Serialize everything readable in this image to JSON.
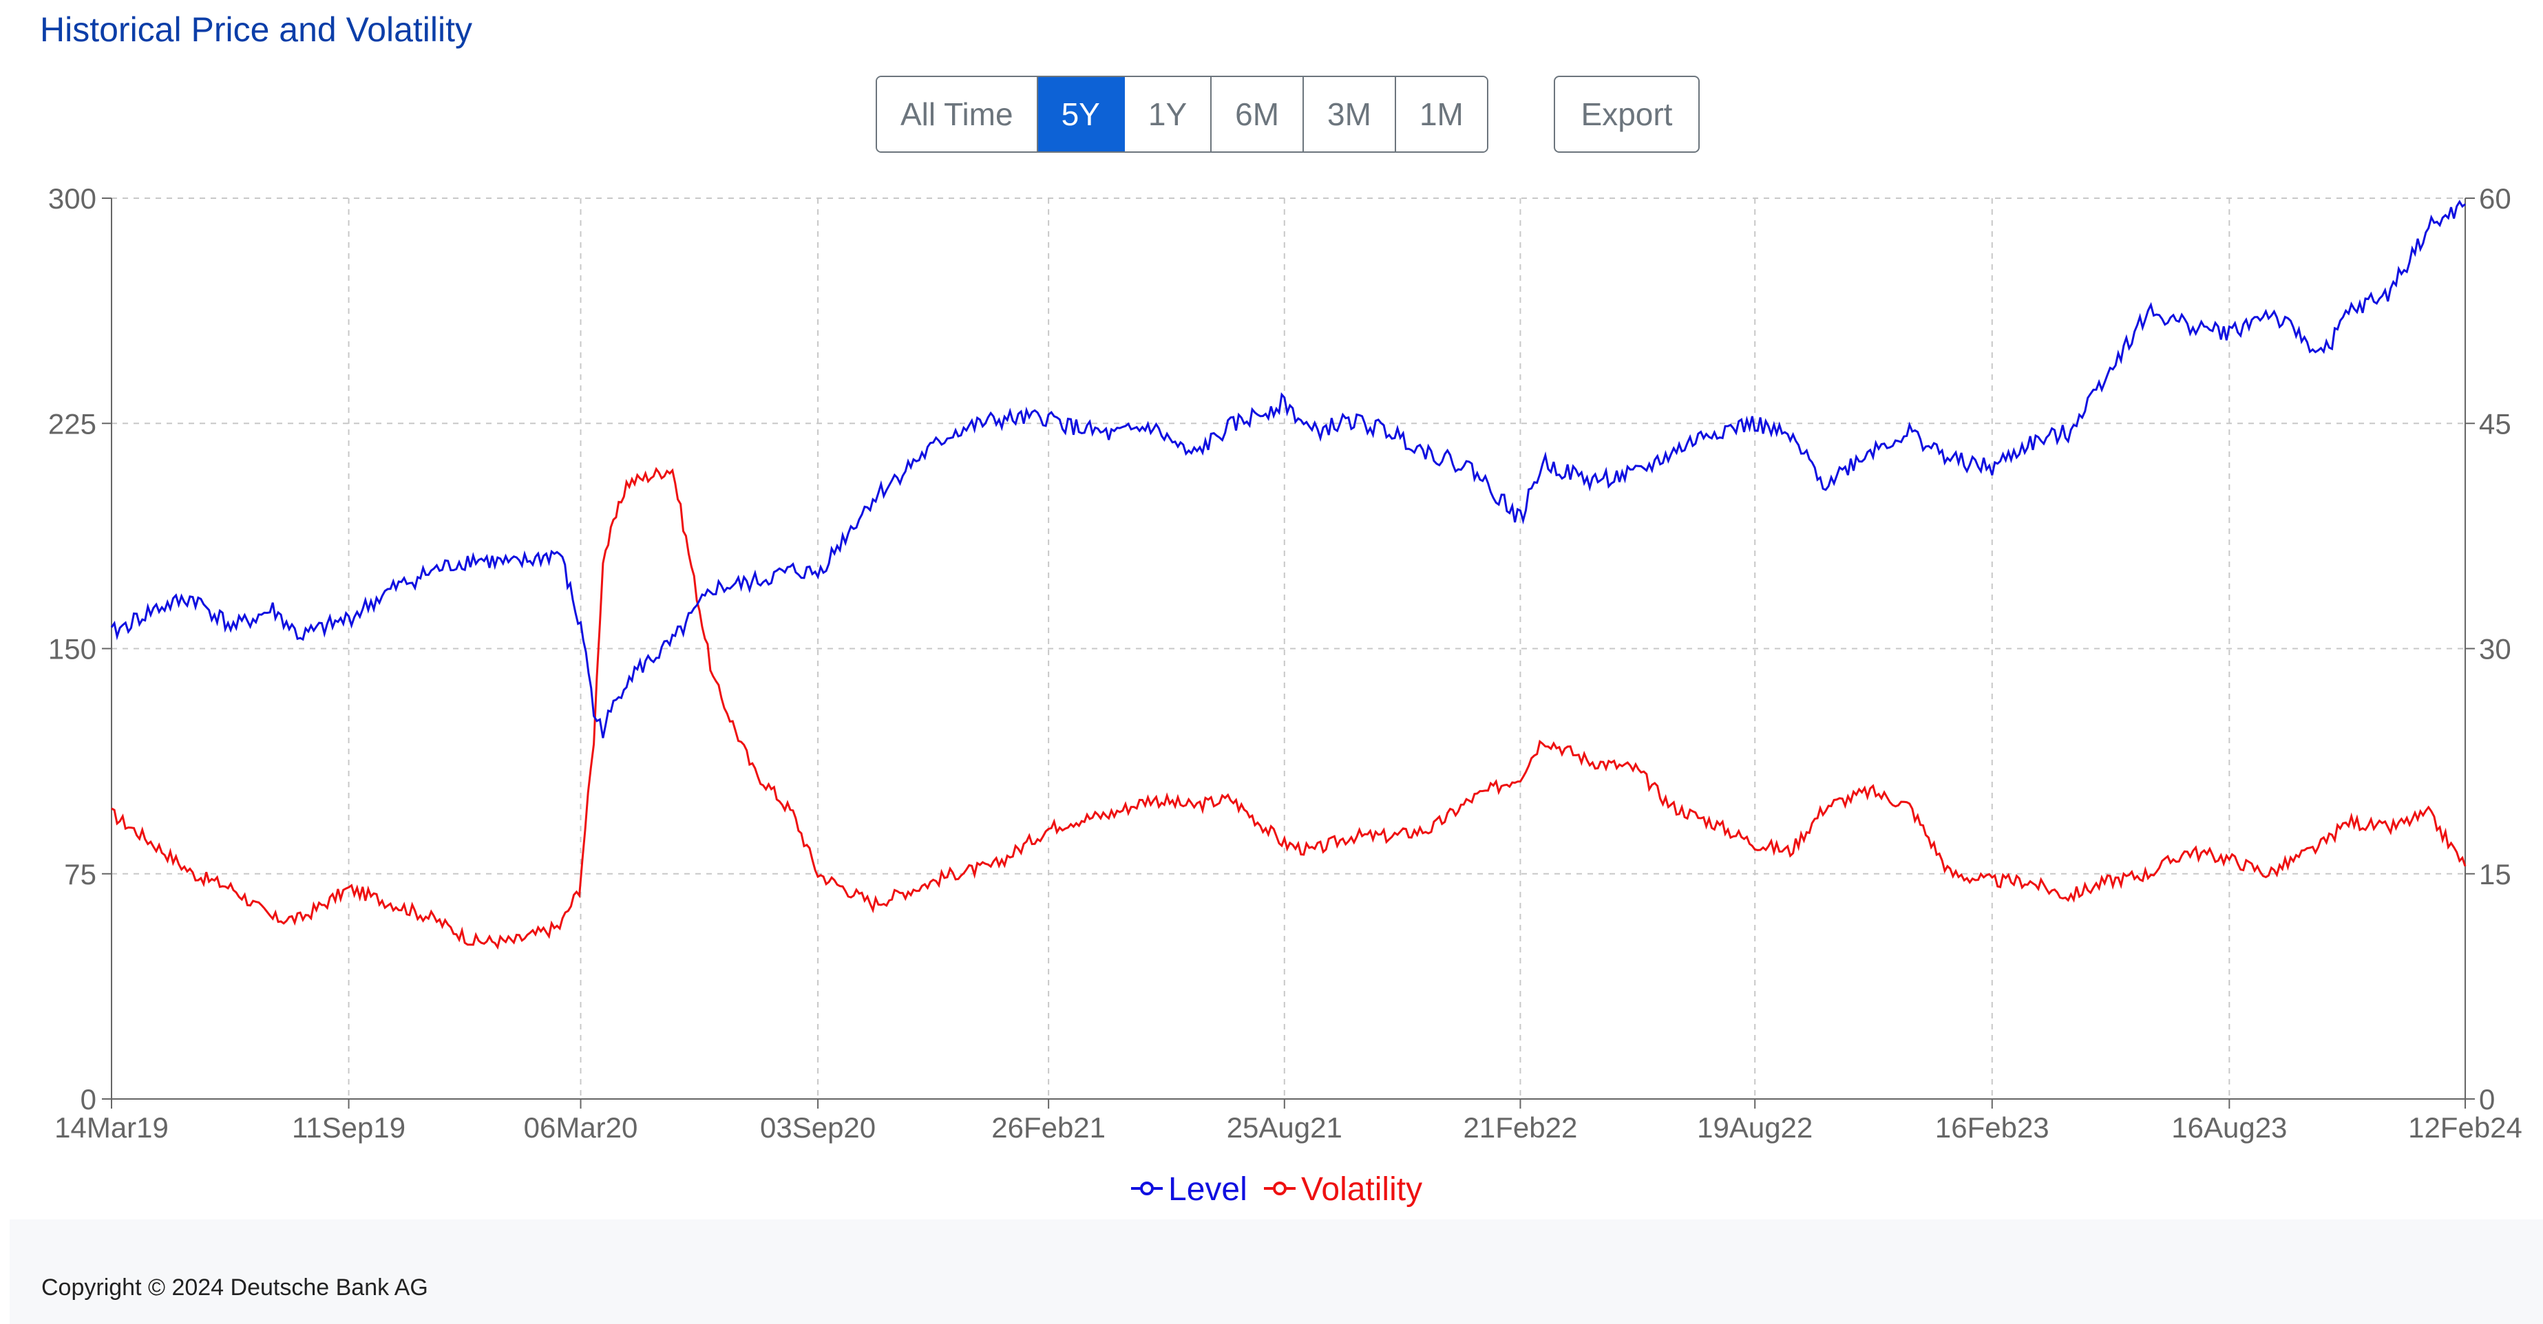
{
  "title": "Historical Price and Volatility",
  "toolbar": {
    "ranges": [
      "All Time",
      "5Y",
      "1Y",
      "6M",
      "3M",
      "1M"
    ],
    "active_range": "5Y",
    "export_label": "Export"
  },
  "colors": {
    "level": "#1010e0",
    "volatility": "#ee1111",
    "title": "#0b3ea8",
    "accent": "#0d62d6",
    "axis": "#666666",
    "grid": "#c8c8c8"
  },
  "footer": {
    "copyright": "Copyright © 2024 Deutsche Bank AG"
  },
  "chart_data": {
    "type": "line",
    "x_ticks": [
      "14Mar19",
      "11Sep19",
      "06Mar20",
      "03Sep20",
      "26Feb21",
      "25Aug21",
      "21Feb22",
      "19Aug22",
      "16Feb23",
      "16Aug23",
      "12Feb24"
    ],
    "y_left": {
      "min": 0,
      "max": 300,
      "ticks": [
        0,
        75,
        150,
        225,
        300
      ]
    },
    "y_right": {
      "min": 0,
      "max": 60,
      "ticks": [
        0,
        15,
        30,
        45,
        60
      ]
    },
    "grid": true,
    "legend_position": "bottom-center",
    "series": [
      {
        "name": "Level",
        "axis": "left",
        "x": [
          "2019-03-14",
          "2019-04-15",
          "2019-05-15",
          "2019-06-15",
          "2019-07-15",
          "2019-08-05",
          "2019-09-11",
          "2019-10-15",
          "2019-11-15",
          "2019-12-15",
          "2020-01-15",
          "2020-02-19",
          "2020-03-10",
          "2020-03-16",
          "2020-03-23",
          "2020-04-10",
          "2020-05-15",
          "2020-06-15",
          "2020-07-15",
          "2020-08-15",
          "2020-09-03",
          "2020-10-15",
          "2020-11-15",
          "2020-12-15",
          "2021-01-15",
          "2021-02-26",
          "2021-03-15",
          "2021-04-15",
          "2021-05-15",
          "2021-06-15",
          "2021-07-15",
          "2021-08-25",
          "2021-09-15",
          "2021-10-15",
          "2021-11-15",
          "2021-12-15",
          "2022-01-15",
          "2022-02-21",
          "2022-03-10",
          "2022-04-15",
          "2022-05-20",
          "2022-06-16",
          "2022-07-15",
          "2022-08-19",
          "2022-09-15",
          "2022-10-12",
          "2022-11-15",
          "2022-12-15",
          "2023-01-15",
          "2023-02-16",
          "2023-03-15",
          "2023-04-15",
          "2023-05-15",
          "2023-06-15",
          "2023-07-15",
          "2023-08-16",
          "2023-09-15",
          "2023-10-27",
          "2023-11-15",
          "2023-12-15",
          "2024-01-15",
          "2024-02-12"
        ],
        "values": [
          155,
          163,
          167,
          157,
          163,
          154,
          160,
          170,
          176,
          180,
          178,
          182,
          150,
          128,
          123,
          140,
          152,
          170,
          172,
          176,
          175,
          200,
          212,
          222,
          226,
          227,
          224,
          221,
          224,
          214,
          224,
          232,
          222,
          226,
          222,
          215,
          210,
          193,
          212,
          206,
          208,
          215,
          222,
          225,
          220,
          205,
          216,
          222,
          213,
          210,
          218,
          222,
          242,
          262,
          258,
          255,
          262,
          248,
          262,
          268,
          290,
          298
        ]
      },
      {
        "name": "Volatility",
        "axis": "right",
        "x": [
          "2019-03-14",
          "2019-04-15",
          "2019-05-15",
          "2019-06-15",
          "2019-07-15",
          "2019-08-05",
          "2019-09-11",
          "2019-10-15",
          "2019-11-15",
          "2019-12-15",
          "2020-01-15",
          "2020-02-19",
          "2020-03-05",
          "2020-03-16",
          "2020-03-23",
          "2020-04-10",
          "2020-05-15",
          "2020-06-15",
          "2020-07-15",
          "2020-08-15",
          "2020-09-03",
          "2020-10-15",
          "2020-11-15",
          "2020-12-15",
          "2021-01-15",
          "2021-02-26",
          "2021-03-15",
          "2021-04-15",
          "2021-05-15",
          "2021-06-15",
          "2021-07-15",
          "2021-08-25",
          "2021-09-15",
          "2021-10-15",
          "2021-11-15",
          "2021-12-15",
          "2022-01-15",
          "2022-02-21",
          "2022-03-10",
          "2022-04-15",
          "2022-05-20",
          "2022-06-16",
          "2022-07-15",
          "2022-08-19",
          "2022-09-15",
          "2022-10-12",
          "2022-11-15",
          "2022-12-15",
          "2023-01-15",
          "2023-02-16",
          "2023-03-15",
          "2023-04-15",
          "2023-05-15",
          "2023-06-15",
          "2023-07-15",
          "2023-08-16",
          "2023-09-15",
          "2023-10-27",
          "2023-11-15",
          "2023-12-15",
          "2024-01-15",
          "2024-02-12"
        ],
        "values": [
          19,
          17,
          15,
          14,
          12,
          12,
          14,
          13,
          12,
          10.5,
          10.5,
          11.5,
          14,
          24,
          36,
          41,
          42,
          28,
          22,
          19,
          15,
          13,
          14,
          15,
          15.5,
          18,
          18.5,
          19,
          20,
          19.5,
          20,
          17,
          16.5,
          17.5,
          17.5,
          18,
          20,
          21.5,
          24,
          22.5,
          22,
          19.5,
          18.5,
          17,
          16.5,
          19.5,
          20.5,
          19.5,
          15,
          14.5,
          14.5,
          13.5,
          14.5,
          15,
          16.5,
          16,
          15,
          17,
          18.5,
          18,
          19,
          15.5
        ]
      }
    ]
  }
}
